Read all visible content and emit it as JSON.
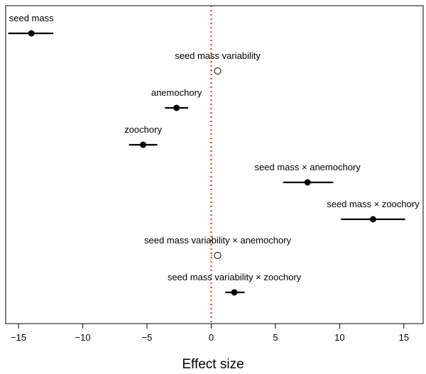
{
  "chart_data": {
    "type": "forest",
    "title": "",
    "xlabel": "Effect size",
    "ylabel": "",
    "xlim": [
      -16,
      16.5
    ],
    "xticks": [
      -15,
      -10,
      -5,
      0,
      5,
      10,
      15
    ],
    "reference_line": {
      "x": 0,
      "style": "dotted",
      "color": "#e02020"
    },
    "grid": false,
    "legend": "none",
    "points": [
      {
        "label": "seed mass",
        "estimate": -14.0,
        "lower": -15.8,
        "upper": -12.3,
        "significant": true
      },
      {
        "label": "seed mass variability",
        "estimate": 0.5,
        "lower": 0.0,
        "upper": 0.9,
        "significant": false
      },
      {
        "label": "anemochory",
        "estimate": -2.7,
        "lower": -3.6,
        "upper": -1.8,
        "significant": true
      },
      {
        "label": "zoochory",
        "estimate": -5.3,
        "lower": -6.4,
        "upper": -4.2,
        "significant": true
      },
      {
        "label": "seed mass × anemochory",
        "estimate": 7.5,
        "lower": 5.6,
        "upper": 9.5,
        "significant": true
      },
      {
        "label": "seed mass × zoochory",
        "estimate": 12.6,
        "lower": 10.1,
        "upper": 15.1,
        "significant": true
      },
      {
        "label": "seed mass variability × anemochory",
        "estimate": 0.5,
        "lower": 0.0,
        "upper": 0.9,
        "significant": false
      },
      {
        "label": "seed mass variability × zoochory",
        "estimate": 1.8,
        "lower": 1.1,
        "upper": 2.6,
        "significant": true
      }
    ]
  }
}
